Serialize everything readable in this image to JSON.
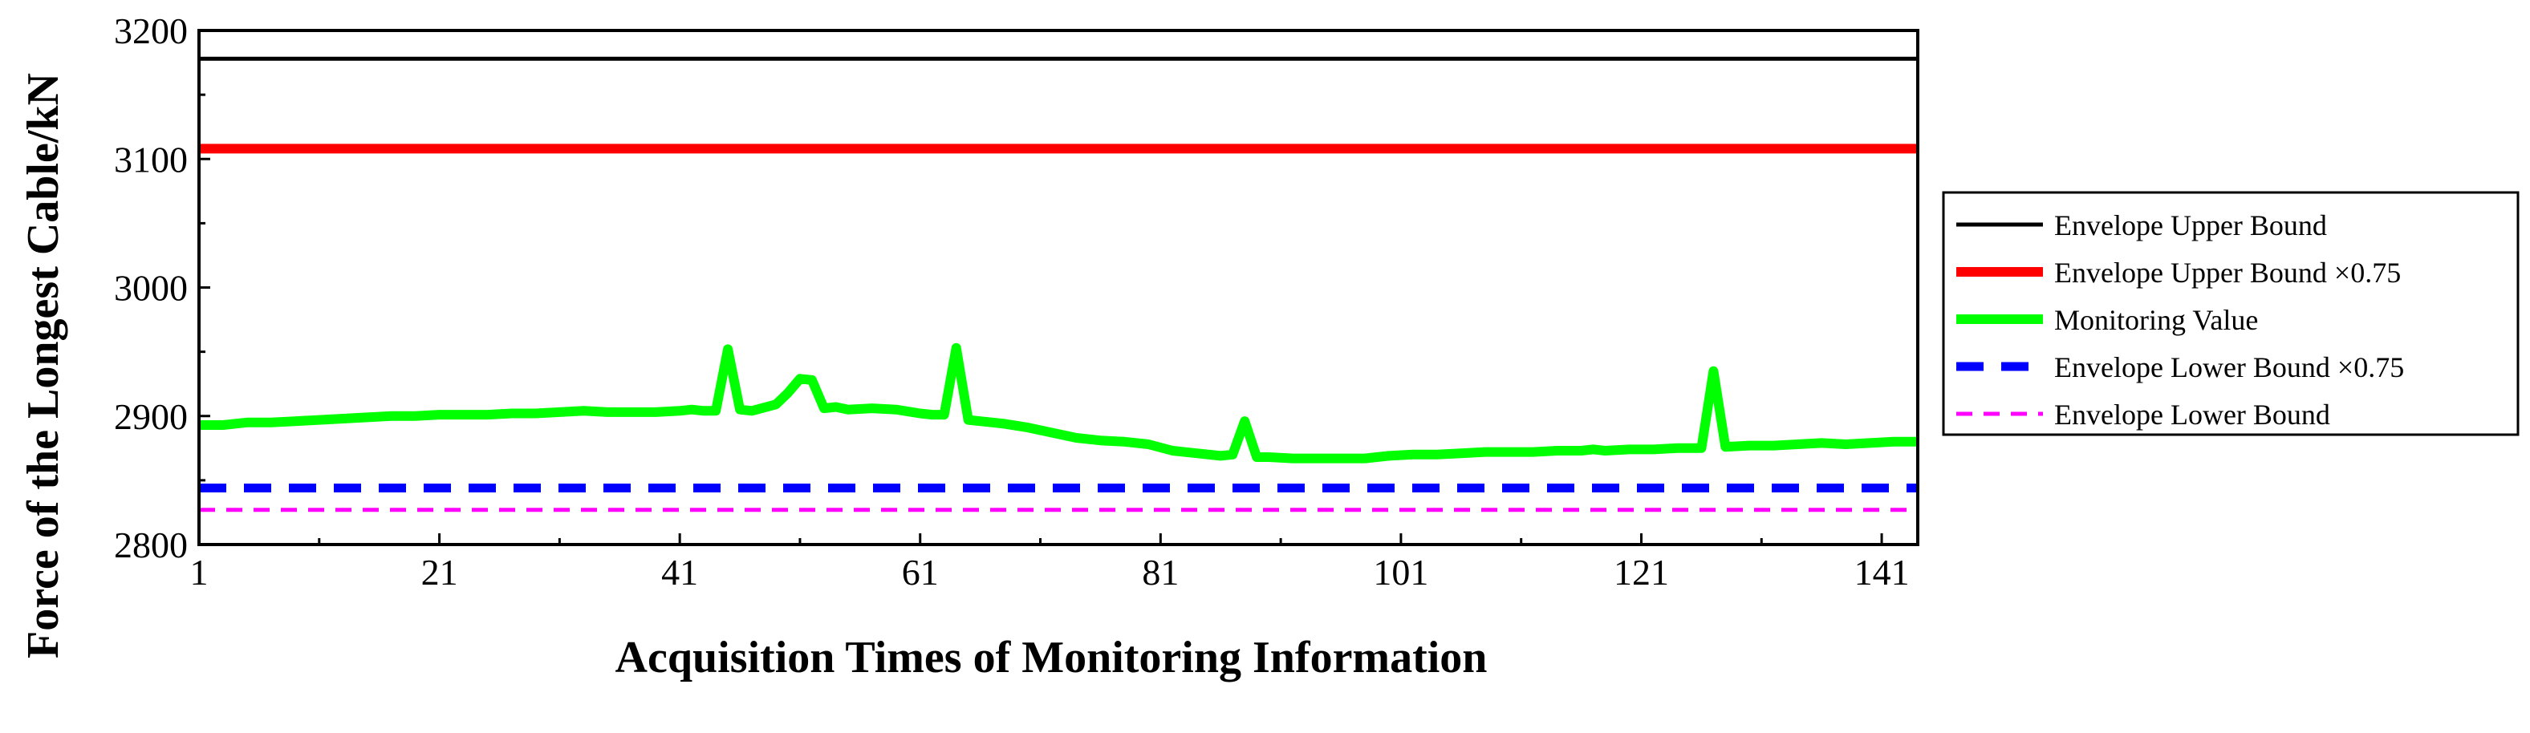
{
  "chart_data": {
    "type": "line",
    "title": "",
    "xlabel": "Acquisition Times of Monitoring Information",
    "ylabel": "Force of the Longest Cable/kN",
    "xlim": [
      1,
      144
    ],
    "ylim": [
      2800,
      3200
    ],
    "xticks": [
      1,
      21,
      41,
      61,
      81,
      101,
      121,
      141
    ],
    "yticks": [
      2800,
      2900,
      3000,
      3100,
      3200
    ],
    "grid": false,
    "legend_position": "right-outside",
    "series": [
      {
        "name": "Envelope Upper Bound",
        "color": "#000000",
        "style": "solid",
        "x": [
          1,
          144
        ],
        "y": [
          3178,
          3178
        ]
      },
      {
        "name": "Envelope Upper Bound ×0.75",
        "color": "#ff0000",
        "style": "solid-thick",
        "x": [
          1,
          144
        ],
        "y": [
          3108,
          3108
        ]
      },
      {
        "name": "Monitoring Value",
        "color": "#00ff00",
        "style": "solid-thick",
        "x": [
          1,
          3,
          5,
          7,
          9,
          11,
          13,
          15,
          17,
          19,
          21,
          23,
          25,
          27,
          29,
          31,
          33,
          35,
          37,
          39,
          41,
          42,
          43,
          44,
          45,
          46,
          47,
          49,
          50,
          51,
          52,
          53,
          54,
          55,
          57,
          59,
          61,
          62,
          63,
          64,
          65,
          66,
          68,
          70,
          72,
          74,
          76,
          78,
          80,
          82,
          84,
          86,
          87,
          88,
          89,
          90,
          92,
          94,
          96,
          98,
          100,
          102,
          104,
          106,
          108,
          110,
          112,
          114,
          116,
          117,
          118,
          120,
          122,
          124,
          125,
          126,
          127,
          128,
          130,
          132,
          134,
          136,
          138,
          140,
          142,
          144
        ],
        "y": [
          2893,
          2893,
          2895,
          2895,
          2896,
          2897,
          2898,
          2899,
          2900,
          2900,
          2901,
          2901,
          2901,
          2902,
          2902,
          2903,
          2904,
          2903,
          2903,
          2903,
          2904,
          2905,
          2904,
          2904,
          2952,
          2905,
          2904,
          2909,
          2918,
          2929,
          2928,
          2906,
          2907,
          2905,
          2906,
          2905,
          2902,
          2901,
          2901,
          2953,
          2897,
          2896,
          2894,
          2891,
          2887,
          2883,
          2881,
          2880,
          2878,
          2873,
          2871,
          2869,
          2870,
          2896,
          2868,
          2868,
          2867,
          2867,
          2867,
          2867,
          2869,
          2870,
          2870,
          2871,
          2872,
          2872,
          2872,
          2873,
          2873,
          2874,
          2873,
          2874,
          2874,
          2875,
          2875,
          2875,
          2935,
          2876,
          2877,
          2877,
          2878,
          2879,
          2878,
          2879,
          2880,
          2880
        ]
      },
      {
        "name": "Envelope Lower Bound ×0.75",
        "color": "#0000ff",
        "style": "dashed-thick",
        "x": [
          1,
          144
        ],
        "y": [
          2844,
          2844
        ]
      },
      {
        "name": "Envelope Lower Bound",
        "color": "#ff00ff",
        "style": "dashed",
        "x": [
          1,
          144
        ],
        "y": [
          2827,
          2827
        ]
      }
    ]
  }
}
